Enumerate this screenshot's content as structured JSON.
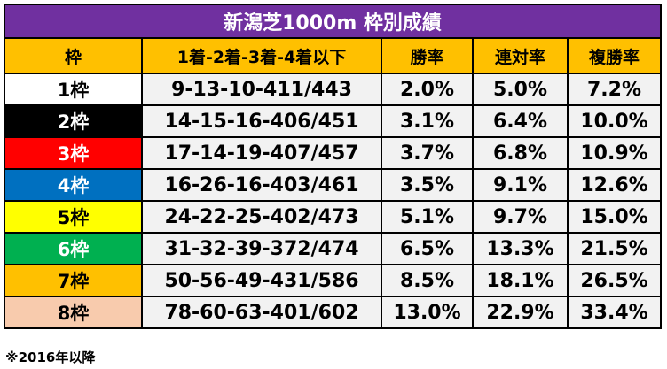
{
  "title": "新潟芝1000m 枠別成績",
  "headers": [
    "枠",
    "1着-2着-3着-4着以下",
    "勝率",
    "連対率",
    "複勝率"
  ],
  "rows": [
    {
      "waku": "1枠",
      "record": "9-13-10-411/443",
      "win": "2.0%",
      "rentai": "5.0%",
      "fukusho": "7.2%",
      "bg": "#ffffff",
      "fg": "#000000"
    },
    {
      "waku": "2枠",
      "record": "14-15-16-406/451",
      "win": "3.1%",
      "rentai": "6.4%",
      "fukusho": "10.0%",
      "bg": "#000000",
      "fg": "#ffffff"
    },
    {
      "waku": "3枠",
      "record": "17-14-19-407/457",
      "win": "3.7%",
      "rentai": "6.8%",
      "fukusho": "10.9%",
      "bg": "#ff0000",
      "fg": "#ffffff"
    },
    {
      "waku": "4枠",
      "record": "16-26-16-403/461",
      "win": "3.5%",
      "rentai": "9.1%",
      "fukusho": "12.6%",
      "bg": "#0070c0",
      "fg": "#ffffff"
    },
    {
      "waku": "5枠",
      "record": "24-22-25-402/473",
      "win": "5.1%",
      "rentai": "9.7%",
      "fukusho": "15.0%",
      "bg": "#ffff00",
      "fg": "#000000"
    },
    {
      "waku": "6枠",
      "record": "31-32-39-372/474",
      "win": "6.5%",
      "rentai": "13.3%",
      "fukusho": "21.5%",
      "bg": "#00b050",
      "fg": "#ffffff"
    },
    {
      "waku": "7枠",
      "record": "50-56-49-431/586",
      "win": "8.5%",
      "rentai": "18.1%",
      "fukusho": "26.5%",
      "bg": "#ffc000",
      "fg": "#000000"
    },
    {
      "waku": "8枠",
      "record": "78-60-63-401/602",
      "win": "13.0%",
      "rentai": "22.9%",
      "fukusho": "33.4%",
      "bg": "#f8cbad",
      "fg": "#000000"
    }
  ],
  "note": "※2016年以降"
}
